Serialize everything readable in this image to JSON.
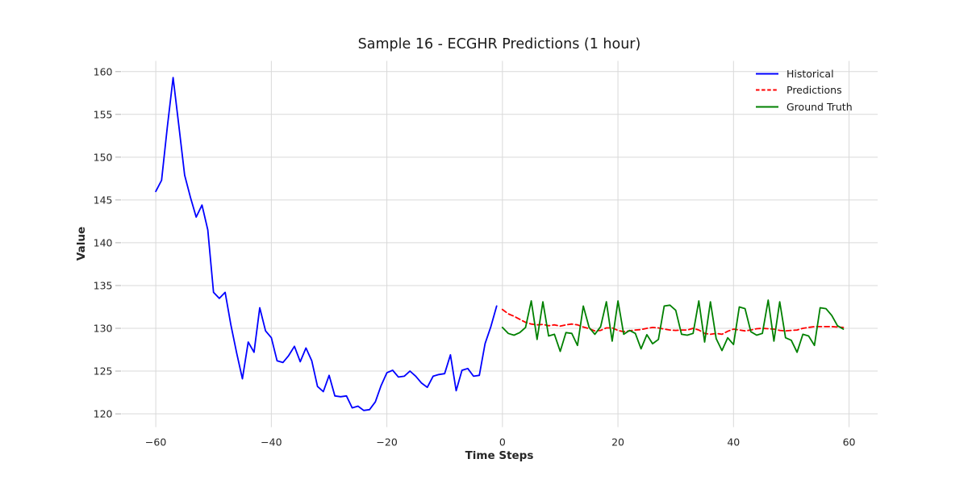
{
  "figure": {
    "background": "#ffffff",
    "grid_color": "#d9d9d9",
    "tick_color": "#262626",
    "text_color": "#1a1a1a"
  },
  "chart_data": {
    "type": "line",
    "title": "Sample 16 - ECGHR Predictions (1 hour)",
    "xlabel": "Time Steps",
    "ylabel": "Value",
    "grid": true,
    "legend_position": "upper right",
    "xlim": [
      -65.95,
      64.95
    ],
    "ylim": [
      118.45,
      161.25
    ],
    "xticks": [
      -60,
      -40,
      -20,
      0,
      20,
      40,
      60
    ],
    "xtick_labels": [
      "−60",
      "−40",
      "−20",
      "0",
      "20",
      "40",
      "60"
    ],
    "yticks": [
      120,
      125,
      130,
      135,
      140,
      145,
      150,
      155,
      160
    ],
    "ytick_labels": [
      "120",
      "125",
      "130",
      "135",
      "140",
      "145",
      "150",
      "155",
      "160"
    ],
    "series": [
      {
        "name": "Historical",
        "color": "#0000ff",
        "style": "solid",
        "x_start": -60,
        "values": [
          146.0,
          147.3,
          153.5,
          159.3,
          153.6,
          147.9,
          145.3,
          143.0,
          144.4,
          141.5,
          134.2,
          133.5,
          134.2,
          130.4,
          127.1,
          124.1,
          128.4,
          127.2,
          132.4,
          129.7,
          128.9,
          126.2,
          126.0,
          126.8,
          127.9,
          126.1,
          127.7,
          126.2,
          123.2,
          122.6,
          124.5,
          122.1,
          122.0,
          122.1,
          120.7,
          120.9,
          120.4,
          120.5,
          121.4,
          123.3,
          124.8,
          125.1,
          124.3,
          124.4,
          125.0,
          124.4,
          123.6,
          123.1,
          124.4,
          124.6,
          124.7,
          126.9,
          122.7,
          125.1,
          125.3,
          124.4,
          124.5,
          128.2,
          130.2,
          132.6
        ]
      },
      {
        "name": "Predictions",
        "color": "#ff0000",
        "style": "dashed",
        "x_start": 0,
        "values": [
          132.2,
          131.7,
          131.4,
          131.05,
          130.7,
          130.5,
          130.4,
          130.45,
          130.3,
          130.4,
          130.25,
          130.4,
          130.5,
          130.4,
          130.15,
          129.95,
          129.7,
          129.75,
          130.05,
          130.05,
          129.75,
          129.6,
          129.7,
          129.8,
          129.85,
          130.0,
          130.1,
          130.05,
          129.9,
          129.8,
          129.75,
          129.8,
          129.8,
          130.0,
          129.8,
          129.4,
          129.3,
          129.4,
          129.3,
          129.65,
          129.9,
          129.8,
          129.7,
          129.8,
          129.95,
          130.0,
          129.95,
          129.9,
          129.75,
          129.7,
          129.75,
          129.8,
          130.0,
          130.1,
          130.2,
          130.2,
          130.2,
          130.2,
          130.15,
          130.1
        ]
      },
      {
        "name": "Ground Truth",
        "color": "#008000",
        "style": "solid",
        "x_start": 0,
        "values": [
          130.1,
          129.4,
          129.2,
          129.5,
          130.1,
          133.2,
          128.7,
          133.1,
          129.1,
          129.3,
          127.3,
          129.5,
          129.4,
          128.0,
          132.6,
          130.1,
          129.3,
          130.2,
          133.1,
          128.5,
          133.2,
          129.3,
          129.75,
          129.4,
          127.6,
          129.25,
          128.2,
          128.7,
          132.6,
          132.7,
          132.1,
          129.3,
          129.2,
          129.4,
          133.2,
          128.4,
          133.1,
          128.8,
          127.4,
          128.9,
          128.1,
          132.5,
          132.3,
          129.6,
          129.2,
          129.4,
          133.3,
          128.5,
          133.1,
          128.9,
          128.6,
          127.2,
          129.3,
          129.1,
          128.0,
          132.4,
          132.3,
          131.5,
          130.3,
          129.9
        ]
      }
    ]
  }
}
